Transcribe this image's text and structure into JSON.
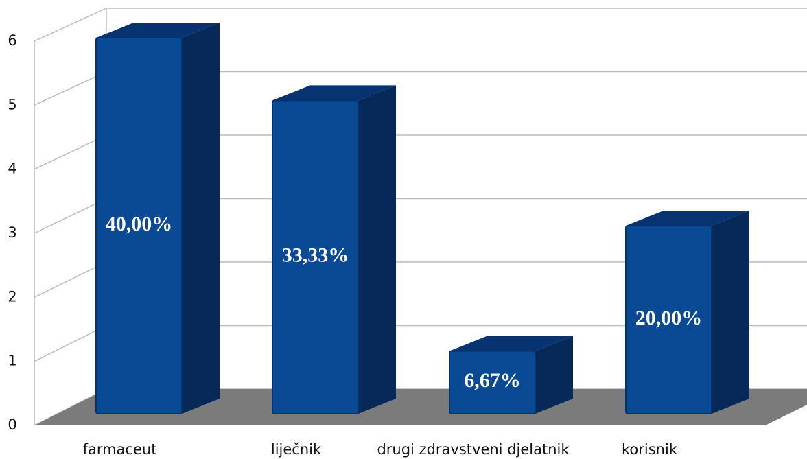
{
  "chart_data": {
    "type": "bar3d",
    "categories": [
      "farmaceut",
      "liječnik",
      "drugi zdravstveni djelatnik",
      "korisnik"
    ],
    "values": [
      6,
      5,
      1,
      3
    ],
    "bar_labels": [
      "40,00%",
      "33,33%",
      "6,67%",
      "20,00%"
    ],
    "color": "#0a4a94",
    "ylim": [
      0,
      6
    ],
    "yticks": [
      0,
      1,
      2,
      3,
      4,
      5,
      6
    ],
    "grid": true
  }
}
